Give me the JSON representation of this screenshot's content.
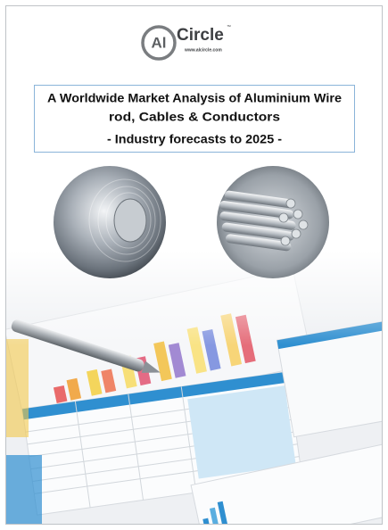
{
  "logo": {
    "mark": "Al",
    "name": "Circle",
    "trademark": "™",
    "url": "www.alcircle.com"
  },
  "header": {
    "title_line_1": "A Worldwide Market Analysis of Aluminium Wire",
    "title_line_2": "rod, Cables & Conductors",
    "subtitle": "- Industry forecasts to 2025 -"
  }
}
